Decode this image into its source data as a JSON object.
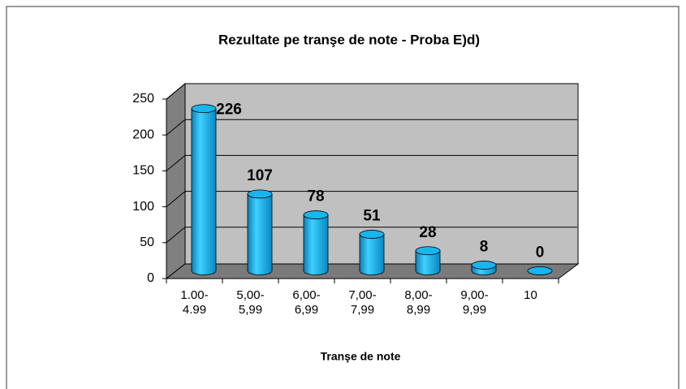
{
  "chart_data": {
    "type": "bar",
    "title": "Rezultate pe tranşe de note - Proba E)d)",
    "x_label": "Tranşe de note",
    "categories": [
      "1.00-\n4.99",
      "5,00-\n5,99",
      "6,00-\n6,99",
      "7,00-\n7,99",
      "8,00-\n8,99",
      "9,00-\n9,99",
      "10"
    ],
    "values": [
      226,
      107,
      78,
      51,
      28,
      8,
      0
    ],
    "color": "#19b5ee",
    "ylim": [
      0,
      250
    ],
    "yticks": [
      0,
      50,
      100,
      150,
      200,
      250
    ],
    "grid": true
  }
}
